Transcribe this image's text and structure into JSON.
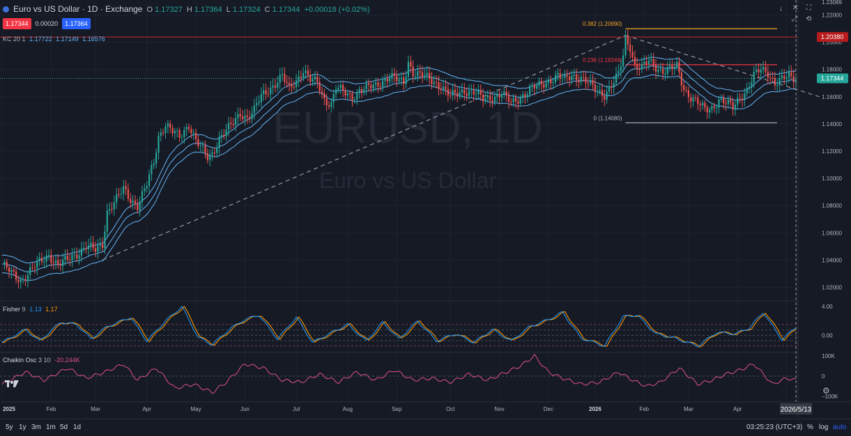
{
  "header": {
    "symbol_title": "Euro vs US Dollar · 1D · Exchange",
    "o_label": "O",
    "o": "1.17327",
    "h_label": "H",
    "h": "1.17364",
    "l_label": "L",
    "l": "1.17324",
    "c_label": "C",
    "c": "1.17344",
    "change": "+0.00018 (+0.02%)",
    "bid": "1.17344",
    "spread": "0.00020",
    "ask": "1.17364"
  },
  "indicators": {
    "kc_name": "KC",
    "kc_params": "20 1",
    "kc_upper": "1.17722",
    "kc_mid": "1.17149",
    "kc_lower": "1.16576",
    "fisher_name": "Fisher",
    "fisher_params": "9",
    "fisher_v1": "1.13",
    "fisher_v2": "1.17",
    "chaikin_name": "Chaikin Osc",
    "chaikin_params": "3 10",
    "chaikin_value": "-20.244K"
  },
  "watermark": {
    "line1": "EURUSD, 1D",
    "line2": "Euro vs US Dollar"
  },
  "price_axis": {
    "top_partial": "1.23089",
    "ticks": [
      "1.22000",
      "1.20000",
      "1.18000",
      "1.16000",
      "1.14000",
      "1.12000",
      "1.10000",
      "1.08000",
      "1.06000",
      "1.04000",
      "1.02000"
    ],
    "tick_values": [
      1.22,
      1.2,
      1.18,
      1.16,
      1.14,
      1.12,
      1.1,
      1.08,
      1.06,
      1.04,
      1.02
    ],
    "red_label": "1.20380",
    "red_value": 1.2038,
    "current_label": "1.17344",
    "current_value": 1.17344
  },
  "fisher_axis": {
    "ticks": [
      "4.00",
      "0.00"
    ],
    "tick_values": [
      4,
      0
    ]
  },
  "chaikin_axis": {
    "ticks": [
      "100K",
      "0",
      "−100K"
    ],
    "tick_values": [
      100,
      0,
      -100
    ]
  },
  "time_axis": {
    "labels": [
      "2025",
      "Feb",
      "Mar",
      "Apr",
      "May",
      "Jun",
      "Jul",
      "Aug",
      "Sep",
      "Oct",
      "Nov",
      "Dec",
      "2026",
      "Feb",
      "Mar",
      "Apr",
      "M"
    ],
    "positions": [
      0,
      21,
      40,
      62,
      83,
      104,
      126,
      148,
      169,
      192,
      213,
      234,
      254,
      275,
      294,
      315,
      336
    ],
    "cursor_date": "2026/5/13"
  },
  "fib_levels": [
    {
      "label": "0.382 (1.20990)",
      "value": 1.2099,
      "color": "#f5a623"
    },
    {
      "label": "0.236 (1.18349)",
      "value": 1.18349,
      "color": "#f23645"
    },
    {
      "label": "0 (1.14080)",
      "value": 1.1408,
      "color": "#b2b5be"
    }
  ],
  "bottom_bar": {
    "timeframes": [
      "5y",
      "1y",
      "3m",
      "1m",
      "5d",
      "1d"
    ],
    "clock": "03:25:23 (UTC+3)",
    "pct_label": "%",
    "log_label": "log",
    "auto_label": "auto"
  },
  "colors": {
    "up": "#26a69a",
    "down": "#ef5350",
    "channel": "#64b5f6",
    "fisher_main": "#2196f3",
    "fisher_trigger": "#ff9800",
    "chaikin": "#e0508c",
    "fib_red": "#f23645",
    "fib_orange": "#f5a623",
    "bg": "#161a25"
  },
  "icons": {
    "logo": "tradingview-logo-icon",
    "settings": "gear-icon"
  },
  "chart_data": {
    "type": "candlestick",
    "symbol": "EURUSD",
    "interval": "1D",
    "ylim": [
      1.01,
      1.231
    ],
    "x_index_range": [
      0,
      350
    ],
    "price_anchors": [
      [
        0,
        1.037
      ],
      [
        4,
        1.03
      ],
      [
        8,
        1.025
      ],
      [
        12,
        1.032
      ],
      [
        16,
        1.038
      ],
      [
        20,
        1.044
      ],
      [
        24,
        1.036
      ],
      [
        28,
        1.04
      ],
      [
        32,
        1.045
      ],
      [
        36,
        1.05
      ],
      [
        40,
        1.047
      ],
      [
        43,
        1.052
      ],
      [
        45,
        1.076
      ],
      [
        48,
        1.082
      ],
      [
        52,
        1.092
      ],
      [
        55,
        1.085
      ],
      [
        58,
        1.08
      ],
      [
        62,
        1.095
      ],
      [
        65,
        1.112
      ],
      [
        67,
        1.131
      ],
      [
        70,
        1.14
      ],
      [
        73,
        1.134
      ],
      [
        76,
        1.13
      ],
      [
        80,
        1.14
      ],
      [
        83,
        1.128
      ],
      [
        86,
        1.12
      ],
      [
        88,
        1.115
      ],
      [
        90,
        1.118
      ],
      [
        93,
        1.13
      ],
      [
        96,
        1.135
      ],
      [
        99,
        1.14
      ],
      [
        102,
        1.148
      ],
      [
        105,
        1.145
      ],
      [
        108,
        1.15
      ],
      [
        111,
        1.16
      ],
      [
        114,
        1.165
      ],
      [
        117,
        1.17
      ],
      [
        120,
        1.175
      ],
      [
        123,
        1.165
      ],
      [
        126,
        1.172
      ],
      [
        129,
        1.18
      ],
      [
        132,
        1.172
      ],
      [
        135,
        1.17
      ],
      [
        138,
        1.158
      ],
      [
        141,
        1.155
      ],
      [
        143,
        1.167
      ],
      [
        146,
        1.163
      ],
      [
        150,
        1.16
      ],
      [
        153,
        1.165
      ],
      [
        156,
        1.166
      ],
      [
        160,
        1.168
      ],
      [
        163,
        1.172
      ],
      [
        166,
        1.175
      ],
      [
        169,
        1.172
      ],
      [
        172,
        1.17
      ],
      [
        174,
        1.186
      ],
      [
        176,
        1.178
      ],
      [
        180,
        1.175
      ],
      [
        184,
        1.172
      ],
      [
        188,
        1.168
      ],
      [
        192,
        1.16
      ],
      [
        195,
        1.162
      ],
      [
        198,
        1.165
      ],
      [
        202,
        1.163
      ],
      [
        206,
        1.158
      ],
      [
        210,
        1.16
      ],
      [
        214,
        1.162
      ],
      [
        218,
        1.155
      ],
      [
        222,
        1.16
      ],
      [
        226,
        1.165
      ],
      [
        230,
        1.168
      ],
      [
        234,
        1.172
      ],
      [
        238,
        1.175
      ],
      [
        241,
        1.172
      ],
      [
        244,
        1.176
      ],
      [
        248,
        1.174
      ],
      [
        252,
        1.168
      ],
      [
        255,
        1.164
      ],
      [
        258,
        1.162
      ],
      [
        261,
        1.168
      ],
      [
        264,
        1.176
      ],
      [
        266,
        1.19
      ],
      [
        267,
        1.202
      ],
      [
        269,
        1.197
      ],
      [
        271,
        1.183
      ],
      [
        274,
        1.181
      ],
      [
        277,
        1.186
      ],
      [
        280,
        1.182
      ],
      [
        283,
        1.179
      ],
      [
        286,
        1.18
      ],
      [
        289,
        1.182
      ],
      [
        292,
        1.166
      ],
      [
        295,
        1.16
      ],
      [
        298,
        1.155
      ],
      [
        301,
        1.15
      ],
      [
        304,
        1.152
      ],
      [
        307,
        1.158
      ],
      [
        310,
        1.155
      ],
      [
        313,
        1.152
      ],
      [
        316,
        1.16
      ],
      [
        319,
        1.165
      ],
      [
        322,
        1.175
      ],
      [
        325,
        1.18
      ],
      [
        328,
        1.178
      ],
      [
        331,
        1.17
      ],
      [
        334,
        1.172
      ],
      [
        337,
        1.175
      ],
      [
        340,
        1.1734
      ]
    ],
    "dashed_trendlines": [
      {
        "from": [
          43,
          1.04
        ],
        "to": [
          267,
          1.205
        ]
      },
      {
        "from": [
          267,
          1.205
        ],
        "to": [
          350,
          1.16
        ]
      }
    ],
    "fisher": {
      "ylim": [
        -2.2,
        4.6
      ],
      "anchors": [
        [
          0,
          -1
        ],
        [
          10,
          0.8
        ],
        [
          16,
          -0.8
        ],
        [
          25,
          1.8
        ],
        [
          32,
          1.5
        ],
        [
          38,
          -0.5
        ],
        [
          45,
          1.2
        ],
        [
          55,
          2.5
        ],
        [
          62,
          -0.8
        ],
        [
          70,
          2.0
        ],
        [
          77,
          4.0
        ],
        [
          84,
          -0.3
        ],
        [
          90,
          -1.3
        ],
        [
          98,
          1.0
        ],
        [
          104,
          2.2
        ],
        [
          110,
          2.8
        ],
        [
          118,
          -0.5
        ],
        [
          126,
          2.5
        ],
        [
          133,
          -1.0
        ],
        [
          140,
          0.2
        ],
        [
          148,
          1.5
        ],
        [
          156,
          -0.8
        ],
        [
          163,
          1.8
        ],
        [
          170,
          -0.5
        ],
        [
          178,
          2.0
        ],
        [
          186,
          -0.8
        ],
        [
          194,
          0.2
        ],
        [
          202,
          -1.0
        ],
        [
          210,
          0.8
        ],
        [
          218,
          -0.8
        ],
        [
          226,
          1.2
        ],
        [
          234,
          2.2
        ],
        [
          240,
          3.2
        ],
        [
          248,
          -0.4
        ],
        [
          258,
          -1.5
        ],
        [
          266,
          2.6
        ],
        [
          272,
          2.8
        ],
        [
          280,
          0.2
        ],
        [
          288,
          -0.4
        ],
        [
          298,
          -1.5
        ],
        [
          306,
          0.4
        ],
        [
          314,
          0.2
        ],
        [
          320,
          1.0
        ],
        [
          326,
          3.2
        ],
        [
          334,
          -0.6
        ],
        [
          340,
          1.13
        ]
      ]
    },
    "chaikin": {
      "ylim": [
        -120,
        110
      ],
      "anchors": [
        [
          0,
          -40
        ],
        [
          10,
          20
        ],
        [
          18,
          -20
        ],
        [
          28,
          40
        ],
        [
          36,
          -10
        ],
        [
          44,
          20
        ],
        [
          52,
          60
        ],
        [
          58,
          -20
        ],
        [
          66,
          40
        ],
        [
          74,
          -60
        ],
        [
          82,
          -40
        ],
        [
          90,
          -80
        ],
        [
          96,
          -30
        ],
        [
          104,
          60
        ],
        [
          112,
          40
        ],
        [
          120,
          -20
        ],
        [
          128,
          -30
        ],
        [
          136,
          10
        ],
        [
          144,
          -30
        ],
        [
          152,
          20
        ],
        [
          160,
          -20
        ],
        [
          168,
          30
        ],
        [
          176,
          -20
        ],
        [
          184,
          -10
        ],
        [
          192,
          -30
        ],
        [
          200,
          10
        ],
        [
          208,
          -20
        ],
        [
          216,
          20
        ],
        [
          222,
          50
        ],
        [
          228,
          100
        ],
        [
          234,
          20
        ],
        [
          240,
          -10
        ],
        [
          248,
          -40
        ],
        [
          256,
          -30
        ],
        [
          264,
          20
        ],
        [
          270,
          -20
        ],
        [
          276,
          -50
        ],
        [
          282,
          -30
        ],
        [
          290,
          40
        ],
        [
          298,
          -40
        ],
        [
          304,
          -20
        ],
        [
          310,
          10
        ],
        [
          316,
          30
        ],
        [
          322,
          60
        ],
        [
          330,
          -40
        ],
        [
          336,
          -10
        ],
        [
          340,
          -20
        ]
      ]
    }
  }
}
